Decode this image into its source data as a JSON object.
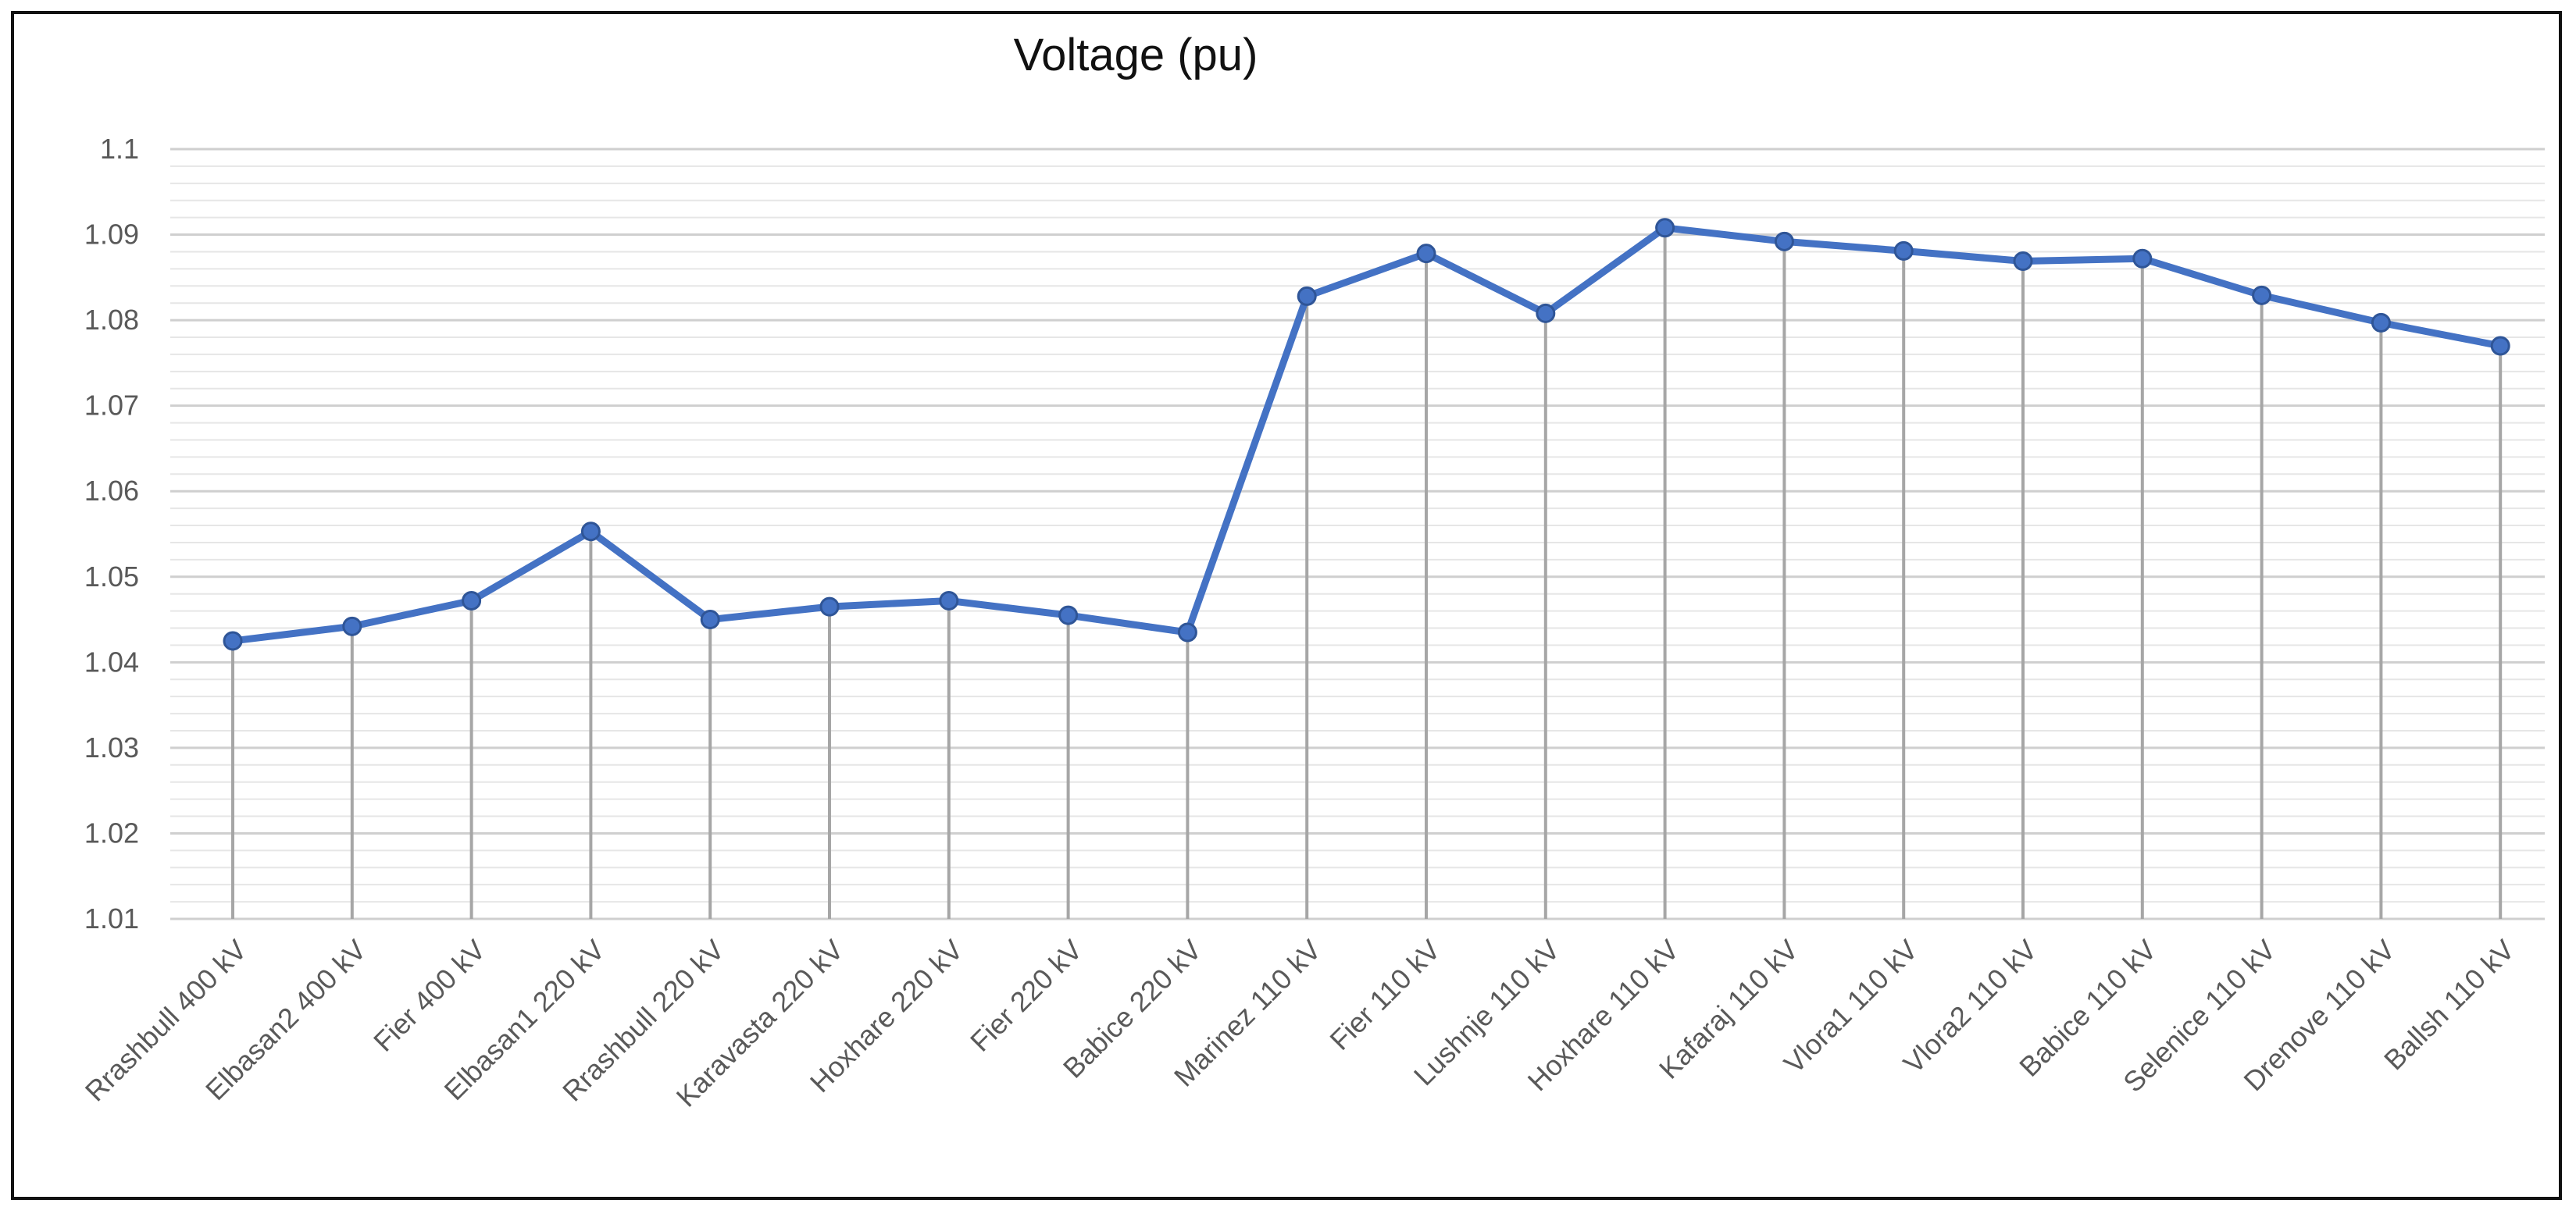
{
  "chart_data": {
    "type": "line",
    "title": "Voltage (pu)",
    "xlabel": "",
    "ylabel": "",
    "ylim": [
      1.01,
      1.1
    ],
    "yticks": [
      "1.01",
      "1.02",
      "1.03",
      "1.04",
      "1.05",
      "1.06",
      "1.07",
      "1.08",
      "1.09",
      "1.1"
    ],
    "minor_gridlines": true,
    "drop_lines": true,
    "line_color": "#4472C4",
    "categories": [
      "Rrashbull 400 kV",
      "Elbasan2 400 kV",
      "Fier 400 kV",
      "Elbasan1 220 kV",
      "Rrashbull 220 kV",
      "Karavasta 220 kV",
      "Hoxhare 220 kV",
      "Fier 220 kV",
      "Babice 220 kV",
      "Marinez 110 kV",
      "Fier 110 kV",
      "Lushnje 110 kV",
      "Hoxhare 110 kV",
      "Kafaraj 110 kV",
      "Vlora1 110 kV",
      "Vlora2 110 kV",
      "Babice 110 kV",
      "Selenice 110 kV",
      "Drenove 110 kV",
      "Ballsh 110 kV"
    ],
    "series": [
      {
        "values": [
          1.0425,
          1.0442,
          1.0472,
          1.0553,
          1.045,
          1.0465,
          1.0472,
          1.0455,
          1.0435,
          1.0828,
          1.0878,
          1.0808,
          1.0908,
          1.0892,
          1.0881,
          1.0869,
          1.0872,
          1.0829,
          1.0797,
          1.077
        ]
      }
    ]
  }
}
